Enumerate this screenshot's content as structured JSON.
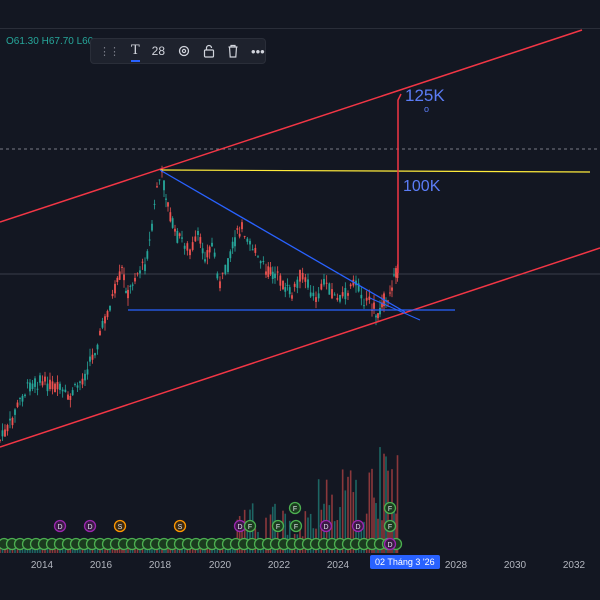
{
  "ohlc": {
    "open": "O61.30",
    "high": "H67.70",
    "low": "L60"
  },
  "toolbar": {
    "drag": "⋮⋮",
    "text_tool": "T",
    "font_size": "28",
    "settings": "⚙",
    "lock": "🔓",
    "delete": "🗑",
    "more": "•••"
  },
  "annotations": {
    "target_125": "125K",
    "target_100": "100K",
    "small_marker": "o"
  },
  "x_axis": {
    "ticks": [
      "2014",
      "2016",
      "2018",
      "2020",
      "2022",
      "2024",
      "2028",
      "2030",
      "2032"
    ],
    "cursor_label": "02 Tháng 3 '26"
  },
  "colors": {
    "background": "#131722",
    "up": "#26a69a",
    "down": "#ef5350",
    "channel": "#f23645",
    "triangle": "#2962ff",
    "horizontal": "#ffeb3b"
  },
  "event_markers": {
    "D": "D",
    "S": "S",
    "F": "F"
  }
}
